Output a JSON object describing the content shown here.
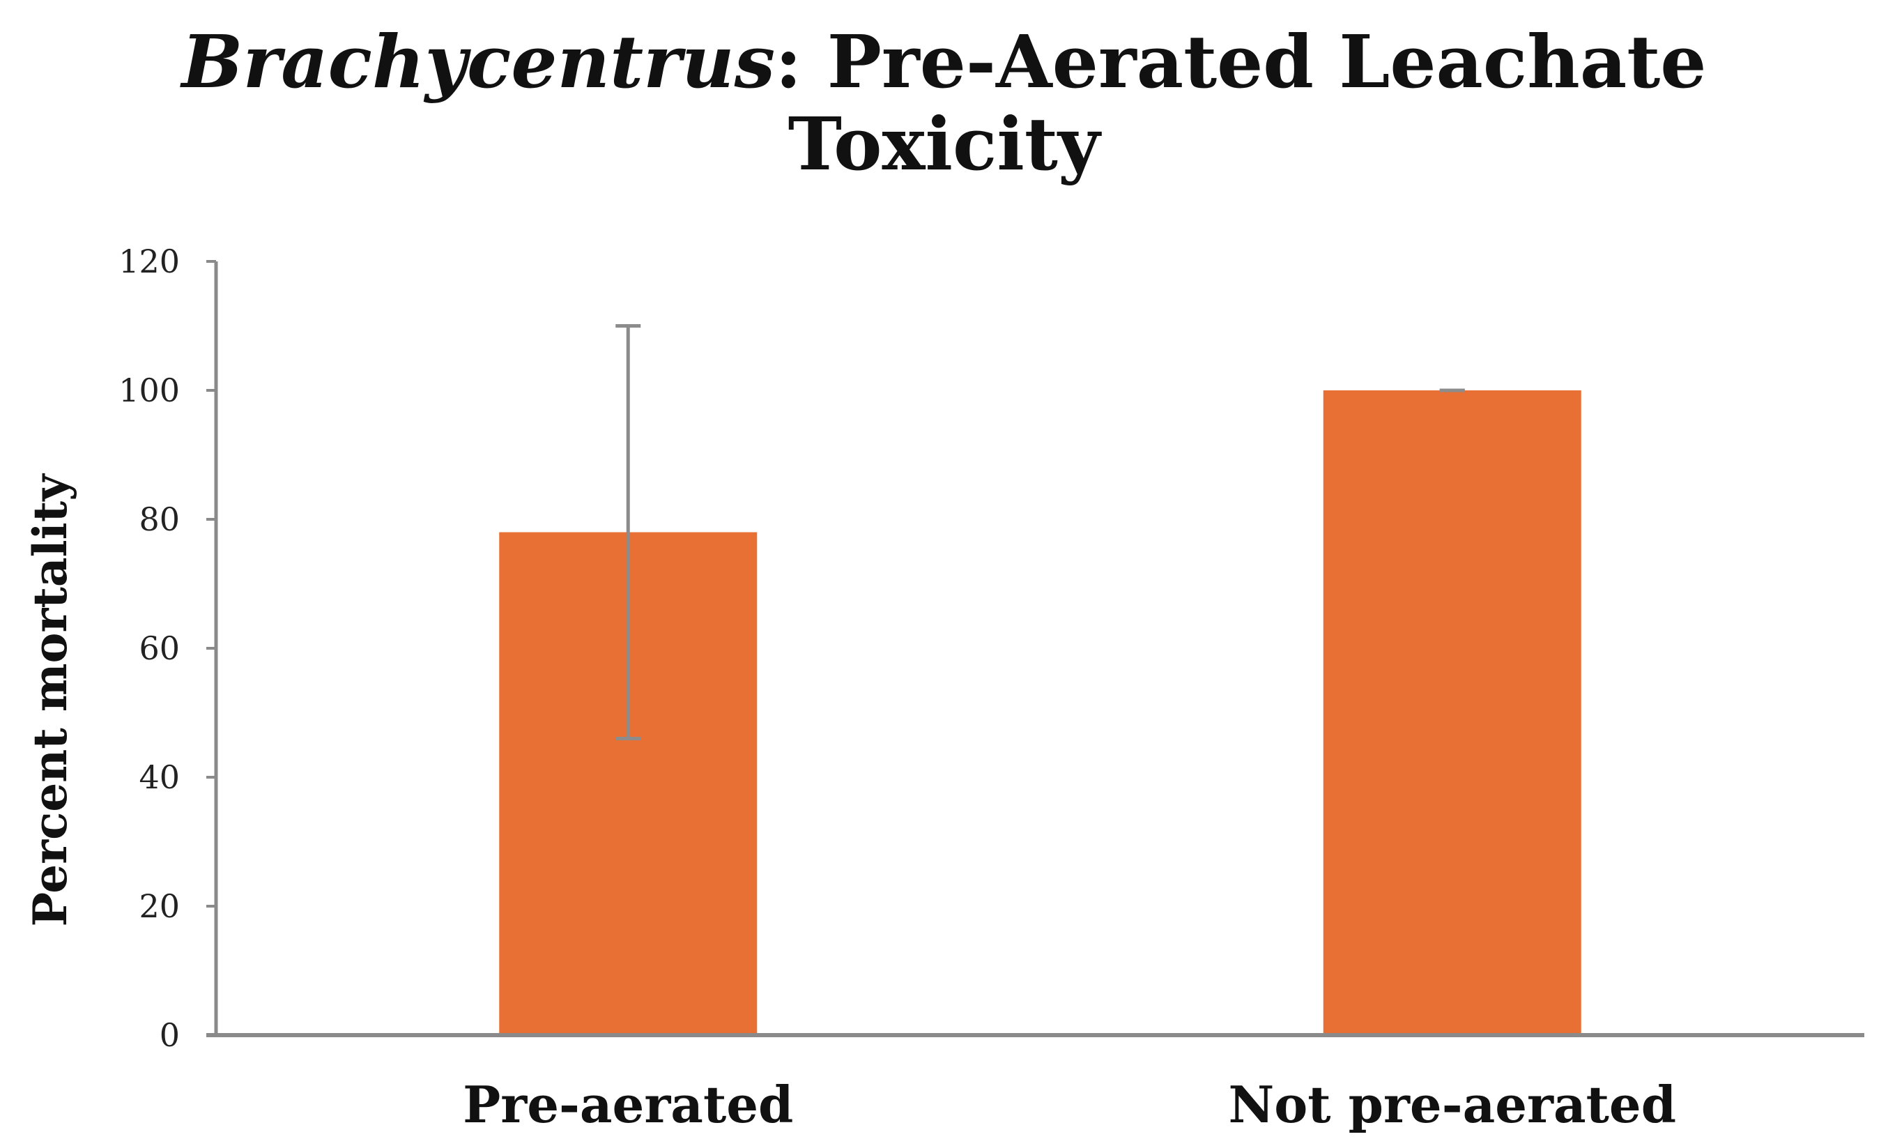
{
  "chart_data": {
    "type": "bar",
    "title": {
      "italic_part": "Brachycentrus",
      "rest_line1": ": Pre-Aerated Leachate",
      "line2": "Toxicity"
    },
    "xlabel": "",
    "ylabel": "Percent mortality",
    "categories": [
      "Pre-aerated",
      "Not pre-aerated"
    ],
    "series": [
      {
        "values": [
          78,
          100
        ],
        "error": [
          32,
          0
        ]
      }
    ],
    "ylim": [
      0,
      120
    ],
    "yticks": [
      "0",
      "20",
      "40",
      "60",
      "80",
      "100",
      "120"
    ],
    "grid": false,
    "legend": "none",
    "colors": {
      "bar": "#E87034",
      "error_bar": "#8c8c8c",
      "axis": "#8a8a8a",
      "text": "#111111"
    }
  }
}
